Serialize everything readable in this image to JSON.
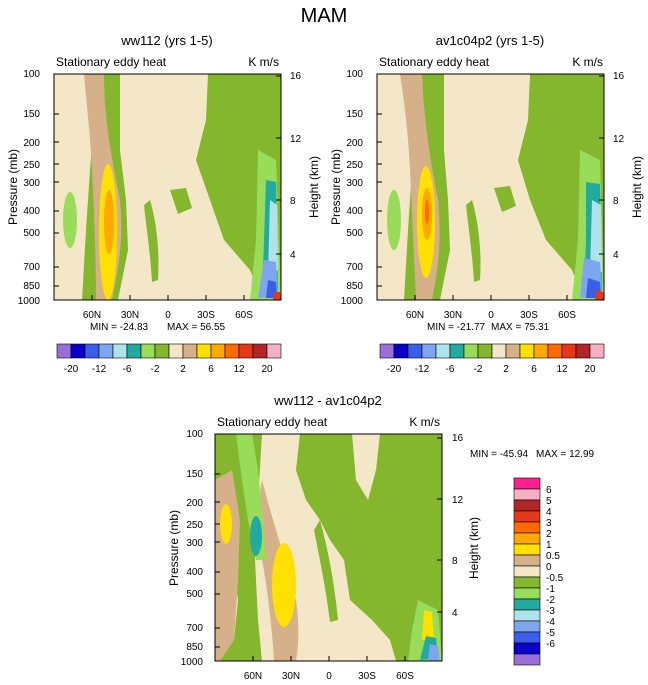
{
  "figure_title": "MAM",
  "colors": {
    "neg_m20": "#9a6fd8",
    "neg_m16": "#0a00c8",
    "neg_m12": "#3a5ee8",
    "neg_m8": "#7ea6f0",
    "neg_m6": "#b0e2ec",
    "neg_m4": "#22aaa0",
    "neg_m2": "#98dc5a",
    "neg_0": "#84b62e",
    "pos_0": "#f4e7c8",
    "pos_2": "#d6b088",
    "pos_4": "#ffe000",
    "pos_6": "#ffa800",
    "pos_8": "#ff6a00",
    "pos_12": "#e63818",
    "pos_16": "#b2262a",
    "pos_20": "#f6b0c6",
    "pos_24": "#ff2090"
  },
  "chart_data": [
    {
      "type": "heatmap",
      "title": "ww112 (yrs 1-5)",
      "subtitle_left": "Stationary eddy heat",
      "subtitle_right": "K m/s",
      "ylabel": "Pressure (mb)",
      "ylabel_right": "Height (km)",
      "x_ticks": [
        "60N",
        "30N",
        "0",
        "30S",
        "60S"
      ],
      "x_tick_values": [
        60,
        30,
        0,
        -30,
        -60
      ],
      "x_range": [
        90,
        -90
      ],
      "y_ticks": [
        "100",
        "150",
        "200",
        "250",
        "300",
        "400",
        "500",
        "700",
        "850",
        "1000"
      ],
      "y_tick_values": [
        100,
        150,
        200,
        250,
        300,
        400,
        500,
        700,
        850,
        1000
      ],
      "y_range": [
        100,
        1000
      ],
      "height_ticks": [
        "16",
        "12",
        "8",
        "4"
      ],
      "height_tick_values": [
        16,
        12,
        8,
        4
      ],
      "min_label": "MIN = -24.83",
      "max_label": "MAX =  56.55",
      "min": -24.83,
      "max": 56.55
    },
    {
      "type": "heatmap",
      "title": "av1c04p2 (yrs 1-5)",
      "subtitle_left": "Stationary eddy heat",
      "subtitle_right": "K m/s",
      "ylabel": "Pressure (mb)",
      "ylabel_right": "Height (km)",
      "x_ticks": [
        "60N",
        "30N",
        "0",
        "30S",
        "60S"
      ],
      "x_tick_values": [
        60,
        30,
        0,
        -30,
        -60
      ],
      "x_range": [
        90,
        -90
      ],
      "y_ticks": [
        "100",
        "150",
        "200",
        "250",
        "300",
        "400",
        "500",
        "700",
        "850",
        "1000"
      ],
      "y_tick_values": [
        100,
        150,
        200,
        250,
        300,
        400,
        500,
        700,
        850,
        1000
      ],
      "y_range": [
        100,
        1000
      ],
      "height_ticks": [
        "16",
        "12",
        "8",
        "4"
      ],
      "height_tick_values": [
        16,
        12,
        8,
        4
      ],
      "min_label": "MIN = -21.77",
      "max_label": "MAX =  75.31",
      "min": -21.77,
      "max": 75.31
    },
    {
      "type": "heatmap",
      "title": "ww112 - av1c04p2",
      "subtitle_left": "Stationary eddy heat",
      "subtitle_right": "K m/s",
      "ylabel": "Pressure (mb)",
      "ylabel_right": "Height (km)",
      "x_ticks": [
        "60N",
        "30N",
        "0",
        "30S",
        "60S"
      ],
      "x_tick_values": [
        60,
        30,
        0,
        -30,
        -60
      ],
      "x_range": [
        90,
        -90
      ],
      "y_ticks": [
        "100",
        "150",
        "200",
        "250",
        "300",
        "400",
        "500",
        "700",
        "850",
        "1000"
      ],
      "y_tick_values": [
        100,
        150,
        200,
        250,
        300,
        400,
        500,
        700,
        850,
        1000
      ],
      "y_range": [
        100,
        1000
      ],
      "height_ticks": [
        "16",
        "12",
        "8",
        "4"
      ],
      "height_tick_values": [
        16,
        12,
        8,
        4
      ],
      "min_label": "MIN = -45.94",
      "max_label": "MAX =  12.99",
      "min": -45.94,
      "max": 12.99
    }
  ],
  "colorbar_top": {
    "labels": [
      "-20",
      "-12",
      "-6",
      "-2",
      "2",
      "6",
      "12",
      "20"
    ],
    "boundaries": [
      -20,
      -16,
      -12,
      -8,
      -6,
      -4,
      -2,
      0,
      2,
      4,
      6,
      8,
      12,
      16,
      20
    ]
  },
  "colorbar_diff": {
    "labels": [
      "6",
      "5",
      "4",
      "3",
      "2",
      "1",
      "0.5",
      "0",
      "-0.5",
      "-1",
      "-2",
      "-3",
      "-4",
      "-5",
      "-6"
    ],
    "boundaries": [
      6,
      5,
      4,
      3,
      2,
      1,
      0.5,
      0,
      -0.5,
      -1,
      -2,
      -3,
      -4,
      -5,
      -6
    ]
  }
}
